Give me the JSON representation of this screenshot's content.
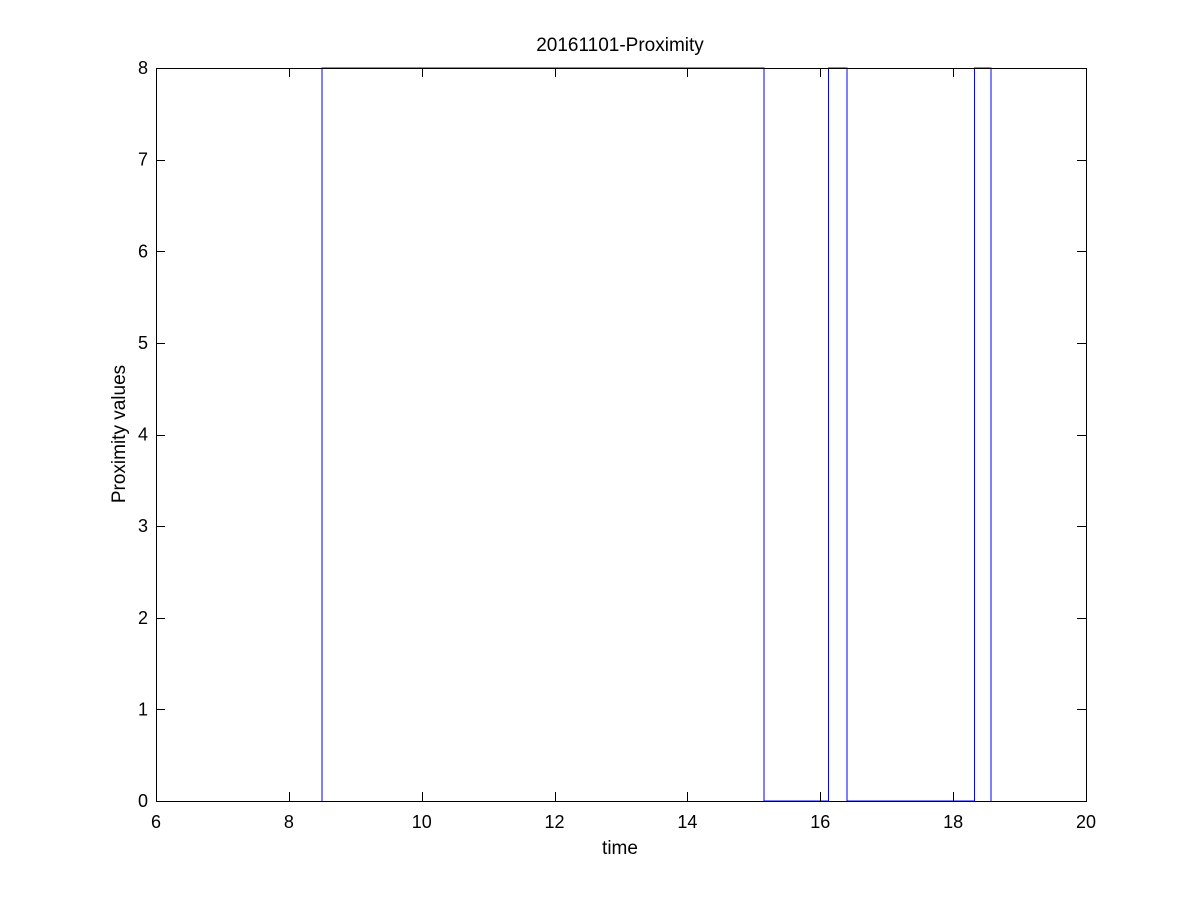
{
  "chart_data": {
    "type": "line",
    "title": "20161101-Proximity",
    "xlabel": "time",
    "ylabel": "Proximity values",
    "xlim": [
      6,
      20
    ],
    "ylim": [
      0,
      8
    ],
    "xticks": [
      6,
      8,
      10,
      12,
      14,
      16,
      18,
      20
    ],
    "yticks": [
      0,
      1,
      2,
      3,
      4,
      5,
      6,
      7,
      8
    ],
    "xtick_labels": [
      "6",
      "8",
      "10",
      "12",
      "14",
      "16",
      "18",
      "20"
    ],
    "ytick_labels": [
      "0",
      "1",
      "2",
      "3",
      "4",
      "5",
      "6",
      "7",
      "8"
    ],
    "grid": false,
    "series": [
      {
        "color": "#0000ff",
        "x": [
          8.5,
          8.5,
          15.15,
          15.15,
          16.12,
          16.12,
          16.4,
          16.4,
          18.32,
          18.32,
          18.57,
          18.57
        ],
        "y": [
          0,
          8,
          8,
          0,
          0,
          8,
          8,
          0,
          0,
          8,
          8,
          0
        ]
      }
    ]
  }
}
